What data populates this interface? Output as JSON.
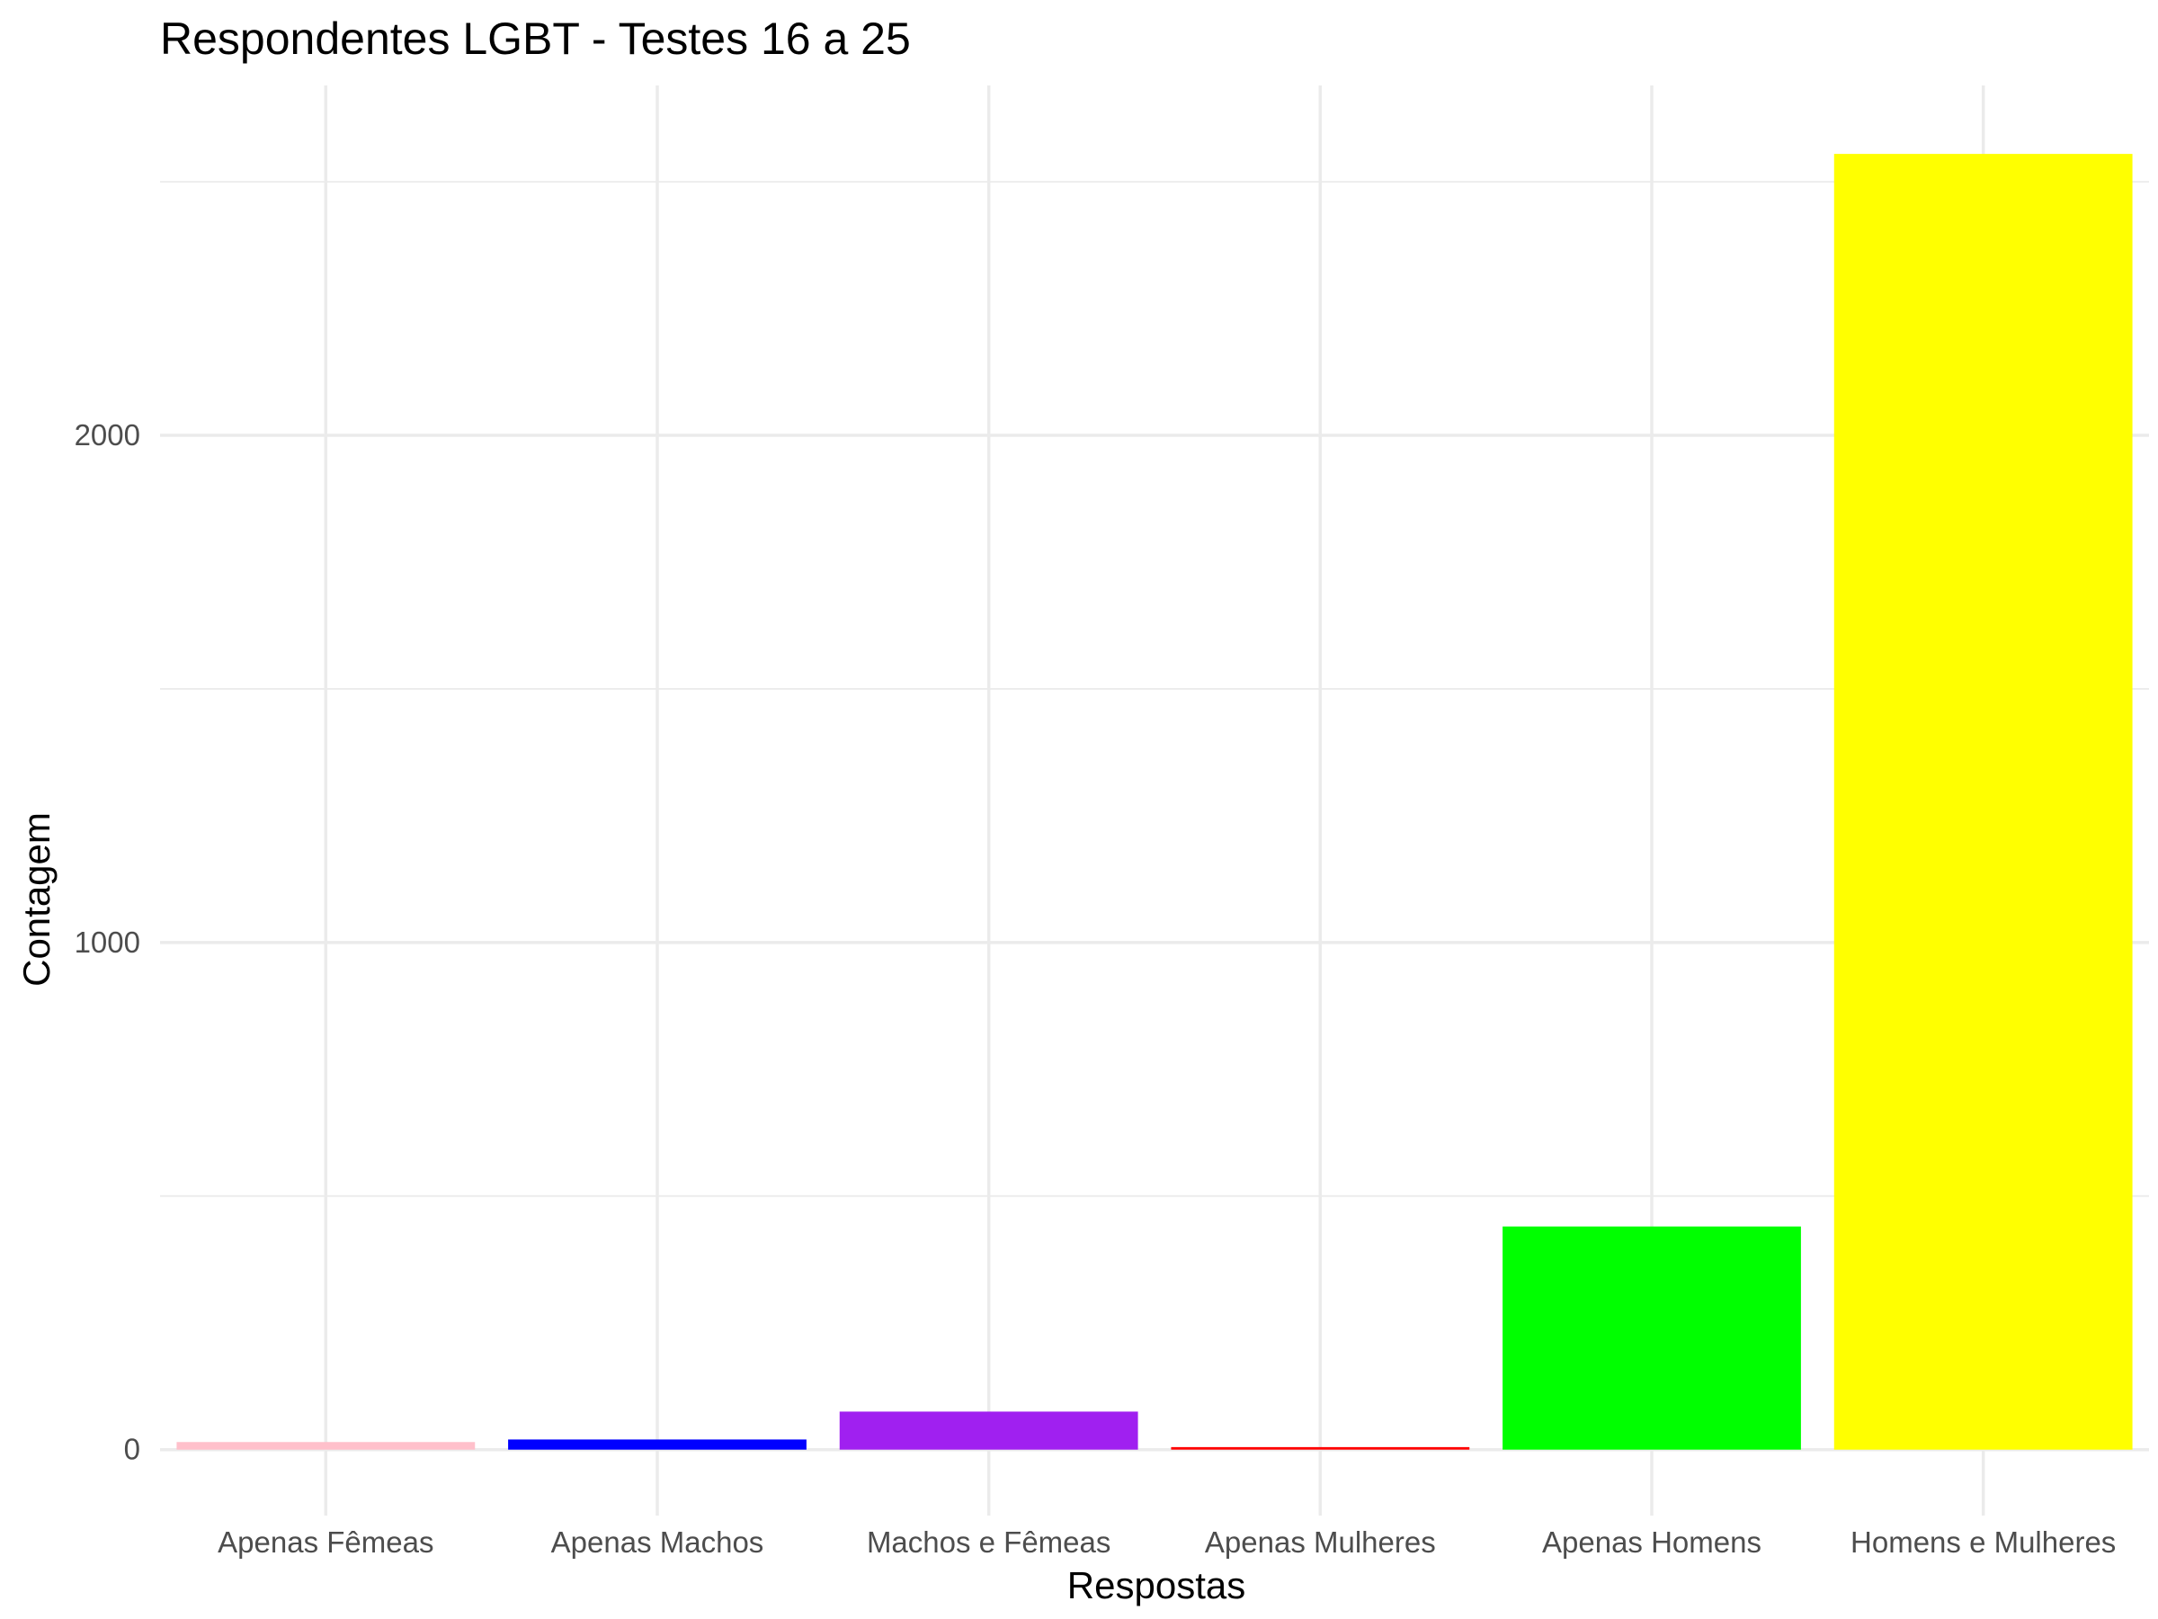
{
  "chart_data": {
    "type": "bar",
    "title": "Respondentes LGBT - Testes 16 a 25",
    "xlabel": "Respostas",
    "ylabel": "Contagem",
    "categories": [
      "Apenas Fêmeas",
      "Apenas Machos",
      "Machos e Fêmeas",
      "Apenas Mulheres",
      "Apenas Homens",
      "Homens e Mulheres"
    ],
    "values": [
      15,
      20,
      75,
      5,
      440,
      2555
    ],
    "colors": [
      "#FFC0CB",
      "#0000FF",
      "#A020F0",
      "#FF0000",
      "#00FF00",
      "#FFFF00"
    ],
    "yticks": [
      0,
      1000,
      2000
    ],
    "ylim": [
      -130,
      2690
    ],
    "grid": true,
    "legend": "none"
  }
}
